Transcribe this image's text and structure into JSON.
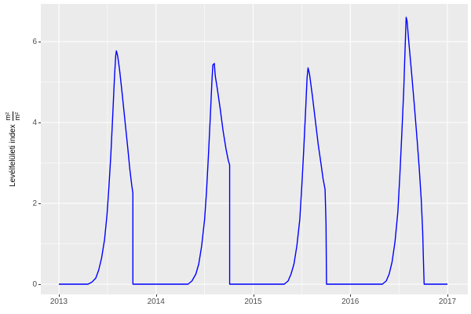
{
  "colors": {
    "line": "#0000FF",
    "panel_bg": "#EBEBEB",
    "grid_major": "#FFFFFF",
    "grid_minor": "#FFFFFF",
    "tick_text": "#4D4D4D",
    "tick_mark": "#333333",
    "axis_title": "#000000",
    "page_bg": "#FFFFFF"
  },
  "y_axis": {
    "title_text": "Levélfelületi index",
    "title_fraction_numerator": "m²",
    "title_fraction_denominator": "m²",
    "tick_labels": [
      "0",
      "2",
      "4",
      "6"
    ]
  },
  "x_axis": {
    "tick_labels": [
      "2013",
      "2014",
      "2015",
      "2016",
      "2017"
    ]
  },
  "chart_data": {
    "type": "line",
    "title": "",
    "xlabel": "",
    "ylabel": "Levélfelületi index (m²/m²)",
    "legend": "none",
    "grid": "on",
    "xlim": [
      2012.81,
      2017.21
    ],
    "ylim": [
      -0.25,
      6.93
    ],
    "x_major_ticks": [
      2013,
      2014,
      2015,
      2016,
      2017
    ],
    "x_minor_gridlines": [
      2013.5,
      2014.5,
      2015.5,
      2016.5
    ],
    "y_major_ticks": [
      0,
      2,
      4,
      6
    ],
    "y_minor_gridlines": [
      1,
      3,
      5
    ],
    "series": [
      {
        "name": "Levélfelületi index",
        "color": "#0000FF",
        "peak_values": [
          5.77,
          5.46,
          5.35,
          6.6
        ],
        "points": [
          [
            2013.0,
            0
          ],
          [
            2013.3,
            0
          ],
          [
            2013.34,
            0.05
          ],
          [
            2013.38,
            0.15
          ],
          [
            2013.41,
            0.35
          ],
          [
            2013.44,
            0.65
          ],
          [
            2013.47,
            1.1
          ],
          [
            2013.495,
            1.7
          ],
          [
            2013.515,
            2.4
          ],
          [
            2013.535,
            3.2
          ],
          [
            2013.555,
            4.2
          ],
          [
            2013.572,
            5.1
          ],
          [
            2013.585,
            5.65
          ],
          [
            2013.592,
            5.77
          ],
          [
            2013.605,
            5.65
          ],
          [
            2013.625,
            5.3
          ],
          [
            2013.65,
            4.75
          ],
          [
            2013.68,
            4.05
          ],
          [
            2013.71,
            3.35
          ],
          [
            2013.73,
            2.85
          ],
          [
            2013.75,
            2.45
          ],
          [
            2013.762,
            2.25
          ],
          [
            2013.762,
            0
          ],
          [
            2014.33,
            0
          ],
          [
            2014.37,
            0.08
          ],
          [
            2014.41,
            0.25
          ],
          [
            2014.44,
            0.5
          ],
          [
            2014.47,
            0.95
          ],
          [
            2014.5,
            1.6
          ],
          [
            2014.52,
            2.3
          ],
          [
            2014.54,
            3.2
          ],
          [
            2014.56,
            4.2
          ],
          [
            2014.575,
            5.0
          ],
          [
            2014.585,
            5.42
          ],
          [
            2014.6,
            5.46
          ],
          [
            2014.61,
            5.15
          ],
          [
            2014.63,
            4.85
          ],
          [
            2014.66,
            4.35
          ],
          [
            2014.69,
            3.8
          ],
          [
            2014.72,
            3.35
          ],
          [
            2014.745,
            3.05
          ],
          [
            2014.758,
            2.95
          ],
          [
            2014.758,
            0
          ],
          [
            2015.32,
            0
          ],
          [
            2015.36,
            0.08
          ],
          [
            2015.39,
            0.25
          ],
          [
            2015.42,
            0.5
          ],
          [
            2015.45,
            0.95
          ],
          [
            2015.48,
            1.6
          ],
          [
            2015.5,
            2.4
          ],
          [
            2015.52,
            3.3
          ],
          [
            2015.54,
            4.3
          ],
          [
            2015.555,
            5.1
          ],
          [
            2015.565,
            5.35
          ],
          [
            2015.58,
            5.2
          ],
          [
            2015.61,
            4.65
          ],
          [
            2015.64,
            4.05
          ],
          [
            2015.67,
            3.45
          ],
          [
            2015.7,
            2.95
          ],
          [
            2015.72,
            2.6
          ],
          [
            2015.74,
            2.35
          ],
          [
            2015.75,
            1.5
          ],
          [
            2015.755,
            0
          ],
          [
            2016.33,
            0
          ],
          [
            2016.37,
            0.08
          ],
          [
            2016.4,
            0.25
          ],
          [
            2016.43,
            0.55
          ],
          [
            2016.46,
            1.05
          ],
          [
            2016.49,
            1.8
          ],
          [
            2016.51,
            2.7
          ],
          [
            2016.53,
            3.7
          ],
          [
            2016.55,
            4.8
          ],
          [
            2016.565,
            5.9
          ],
          [
            2016.575,
            6.6
          ],
          [
            2016.585,
            6.5
          ],
          [
            2016.6,
            6.05
          ],
          [
            2016.63,
            5.25
          ],
          [
            2016.66,
            4.4
          ],
          [
            2016.69,
            3.5
          ],
          [
            2016.71,
            2.85
          ],
          [
            2016.73,
            2.1
          ],
          [
            2016.745,
            1.3
          ],
          [
            2016.755,
            0.4
          ],
          [
            2016.76,
            0
          ],
          [
            2017.0,
            0
          ]
        ]
      }
    ]
  }
}
